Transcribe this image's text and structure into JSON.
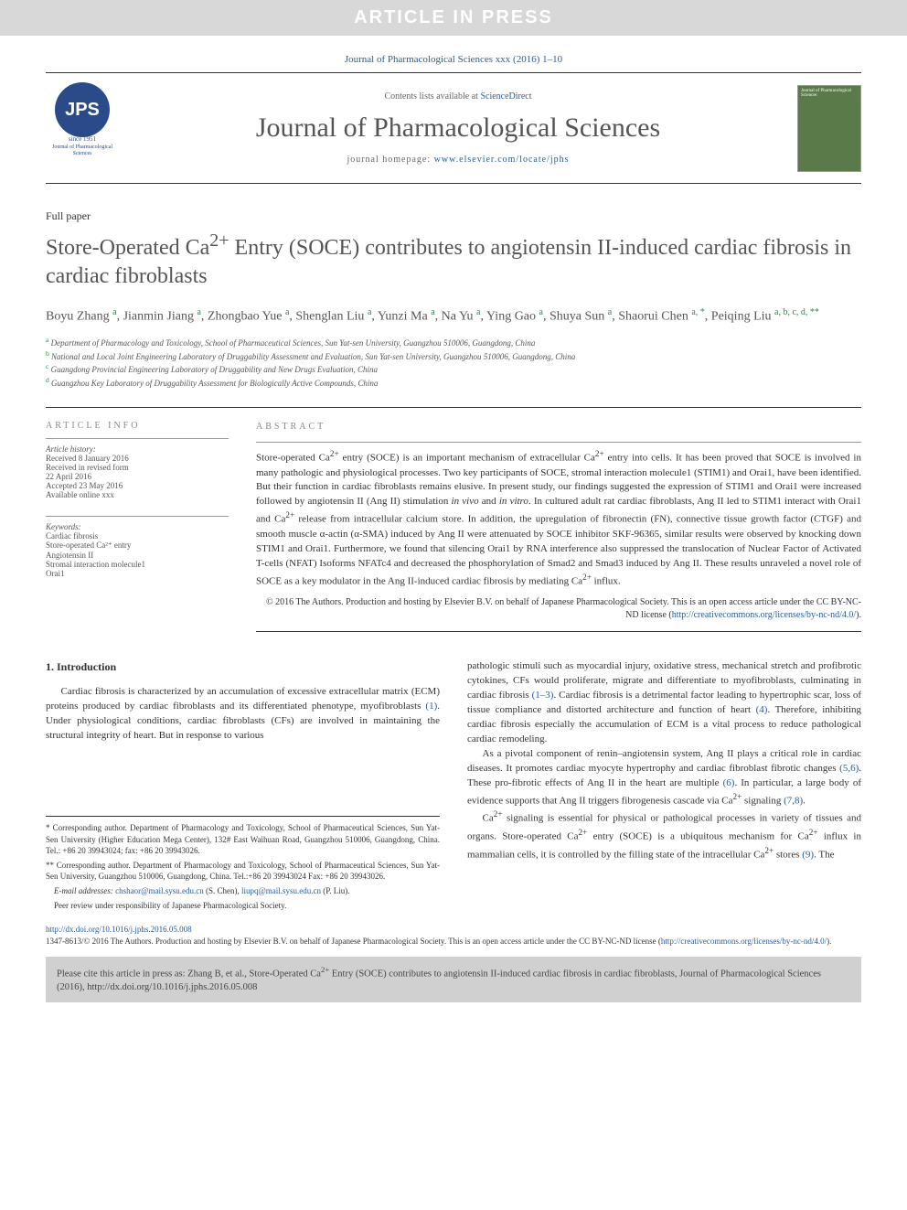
{
  "banner": "ARTICLE IN PRESS",
  "citation_top": "Journal of Pharmacological Sciences xxx (2016) 1–10",
  "header": {
    "contents_prefix": "Contents lists available at ",
    "contents_link": "ScienceDirect",
    "journal_name": "Journal of Pharmacological Sciences",
    "homepage_prefix": "journal homepage: ",
    "homepage_link": "www.elsevier.com/locate/jphs",
    "logo_text": "JPS",
    "logo_since": "since 1951",
    "logo_sub": "Journal of Pharmacological Sciences",
    "cover_title": "Journal of Pharmacological Sciences"
  },
  "article_type": "Full paper",
  "title_html": "Store-Operated Ca<sup>2+</sup> Entry (SOCE) contributes to angiotensin II-induced cardiac fibrosis in cardiac fibroblasts",
  "authors_html": "Boyu Zhang <sup>a</sup>, Jianmin Jiang <sup>a</sup>, Zhongbao Yue <sup>a</sup>, Shenglan Liu <sup>a</sup>, Yunzi Ma <sup>a</sup>, Na Yu <sup>a</sup>, Ying Gao <sup>a</sup>, Shuya Sun <sup>a</sup>, Shaorui Chen <sup>a, *</sup>, Peiqing Liu <sup>a, b, c, d, **</sup>",
  "affiliations": {
    "a": "Department of Pharmacology and Toxicology, School of Pharmaceutical Sciences, Sun Yat-sen University, Guangzhou 510006, Guangdong, China",
    "b": "National and Local Joint Engineering Laboratory of Druggability Assessment and Evaluation, Sun Yat-sen University, Guangzhou 510006, Guangdong, China",
    "c": "Guangdong Provincial Engineering Laboratory of Druggability and New Drugs Evaluation, China",
    "d": "Guangzhou Key Laboratory of Druggability Assessment for Biologically Active Compounds, China"
  },
  "info": {
    "heading": "ARTICLE INFO",
    "history_label": "Article history:",
    "history": [
      "Received 8 January 2016",
      "Received in revised form",
      "22 April 2016",
      "Accepted 23 May 2016",
      "Available online xxx"
    ],
    "keywords_label": "Keywords:",
    "keywords": [
      "Cardiac fibrosis",
      "Store-operated Ca²⁺ entry",
      "Angiotensin II",
      "Stromal interaction molecule1",
      "Orai1"
    ]
  },
  "abstract": {
    "heading": "ABSTRACT",
    "text_html": "Store-operated Ca<sup>2+</sup> entry (SOCE) is an important mechanism of extracellular Ca<sup>2+</sup> entry into cells. It has been proved that SOCE is involved in many pathologic and physiological processes. Two key participants of SOCE, stromal interaction molecule1 (STIM1) and Orai1, have been identified. But their function in cardiac fibroblasts remains elusive. In present study, our findings suggested the expression of STIM1 and Orai1 were increased followed by angiotensin II (Ang II) stimulation <i>in vivo</i> and <i>in vitro</i>. In cultured adult rat cardiac fibroblasts, Ang II led to STIM1 interact with Orai1 and Ca<sup>2+</sup> release from intracellular calcium store. In addition, the upregulation of fibronectin (FN), connective tissue growth factor (CTGF) and smooth muscle α-actin (α-SMA) induced by Ang II were attenuated by SOCE inhibitor SKF-96365, similar results were observed by knocking down STIM1 and Orai1. Furthermore, we found that silencing Orai1 by RNA interference also suppressed the translocation of Nuclear Factor of Activated T-cells (NFAT) Isoforms NFATc4 and decreased the phosphorylation of Smad2 and Smad3 induced by Ang II. These results unraveled a novel role of SOCE as a key modulator in the Ang II-induced cardiac fibrosis by mediating Ca<sup>2+</sup> influx.",
    "copyright_html": "© 2016 The Authors. Production and hosting by Elsevier B.V. on behalf of Japanese Pharmacological Society. This is an open access article under the CC BY-NC-ND license (<a href='#'>http://creativecommons.org/licenses/by-nc-nd/4.0/</a>)."
  },
  "body": {
    "section_num": "1.",
    "section_title": "Introduction",
    "col1_p1_html": "Cardiac fibrosis is characterized by an accumulation of excessive extracellular matrix (ECM) proteins produced by cardiac fibroblasts and its differentiated phenotype, myofibroblasts <span class='ref-link'>(1)</span>. Under physiological conditions, cardiac fibroblasts (CFs) are involved in maintaining the structural integrity of heart. But in response to various",
    "col2_p1_html": "pathologic stimuli such as myocardial injury, oxidative stress, mechanical stretch and profibrotic cytokines, CFs would proliferate, migrate and differentiate to myofibroblasts, culminating in cardiac fibrosis <span class='ref-link'>(1–3)</span>. Cardiac fibrosis is a detrimental factor leading to hypertrophic scar, loss of tissue compliance and distorted architecture and function of heart <span class='ref-link'>(4)</span>. Therefore, inhibiting cardiac fibrosis especially the accumulation of ECM is a vital process to reduce pathological cardiac remodeling.",
    "col2_p2_html": "As a pivotal component of renin–angiotensin system, Ang II plays a critical role in cardiac diseases. It promotes cardiac myocyte hypertrophy and cardiac fibroblast fibrotic changes <span class='ref-link'>(5,6)</span>. These pro-fibrotic effects of Ang II in the heart are multiple <span class='ref-link'>(6)</span>. In particular, a large body of evidence supports that Ang II triggers fibrogenesis cascade via Ca<sup>2+</sup> signaling <span class='ref-link'>(7,8)</span>.",
    "col2_p3_html": "Ca<sup>2+</sup> signaling is essential for physical or pathological processes in variety of tissues and organs. Store-operated Ca<sup>2+</sup> entry (SOCE) is a ubiquitous mechanism for Ca<sup>2+</sup> influx in mammalian cells, it is controlled by the filling state of the intracellular Ca<sup>2+</sup> stores <span class='ref-link'>(9)</span>. The"
  },
  "footnotes": {
    "corr1": "* Corresponding author. Department of Pharmacology and Toxicology, School of Pharmaceutical Sciences, Sun Yat-Sen University (Higher Education Mega Center), 132# East Waihuan Road, Guangzhou 510006, Guangdong, China. Tel.: +86 20 39943024; fax: +86 20 39943026.",
    "corr2": "** Corresponding author. Department of Pharmacology and Toxicology, School of Pharmaceutical Sciences, Sun Yat-Sen University, Guangzhou 510006, Guangdong, China. Tel.:+86 20 39943024 Fax: +86 20 39943026.",
    "emails_html": "<i>E-mail addresses:</i> <a href='#'>chshaor@mail.sysu.edu.cn</a> (S. Chen), <a href='#'>liupq@mail.sysu.edu.cn</a> (P. Liu).",
    "peer": "Peer review under responsibility of Japanese Pharmacological Society."
  },
  "doi": {
    "link": "http://dx.doi.org/10.1016/j.jphs.2016.05.008",
    "issn_html": "1347-8613/© 2016 The Authors. Production and hosting by Elsevier B.V. on behalf of Japanese Pharmacological Society. This is an open access article under the CC BY-NC-ND license (<a href='#'>http://creativecommons.org/licenses/by-nc-nd/4.0/</a>)."
  },
  "cite_box_html": "Please cite this article in press as: Zhang B, et al., Store-Operated Ca<sup>2+</sup> Entry (SOCE) contributes to angiotensin II-induced cardiac fibrosis in cardiac fibroblasts, Journal of Pharmacological Sciences (2016), http://dx.doi.org/10.1016/j.jphs.2016.05.008",
  "colors": {
    "banner_bg": "#d8d8d8",
    "link": "#2a5c9a",
    "affil_sup": "#2a8a4a",
    "cite_bg": "#d0d0d0",
    "logo_bg": "#2a4a8a",
    "cover_bg": "#5a7a4a"
  }
}
